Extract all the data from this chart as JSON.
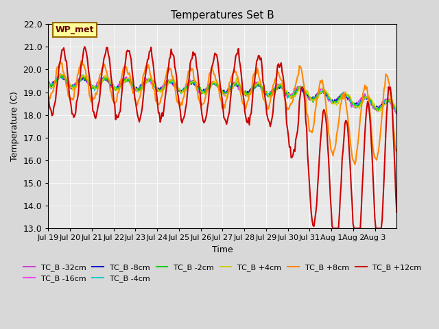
{
  "title": "Temperatures Set B",
  "ylabel": "Temperature (C)",
  "xlabel": "Time",
  "xlim_days": 16,
  "ylim": [
    13.0,
    22.0
  ],
  "yticks": [
    13.0,
    14.0,
    15.0,
    16.0,
    17.0,
    18.0,
    19.0,
    20.0,
    21.0,
    22.0
  ],
  "xtick_labels": [
    "Jul 19",
    "Jul 20",
    "Jul 21",
    "Jul 22",
    "Jul 23",
    "Jul 24",
    "Jul 25",
    "Jul 26",
    "Jul 27",
    "Jul 28",
    "Jul 29",
    "Jul 30",
    "Jul 31",
    "Aug 1",
    "Aug 2",
    "Aug 3"
  ],
  "bg_color": "#e8e8e8",
  "plot_bg": "#f0f0f0",
  "series": {
    "TC_B -32cm": {
      "color": "#cc44cc",
      "lw": 1.2
    },
    "TC_B -16cm": {
      "color": "#ff44ff",
      "lw": 1.2
    },
    "TC_B -8cm": {
      "color": "#0000cc",
      "lw": 1.2
    },
    "TC_B -4cm": {
      "color": "#00cccc",
      "lw": 1.2
    },
    "TC_B -2cm": {
      "color": "#00cc00",
      "lw": 1.2
    },
    "TC_B +4cm": {
      "color": "#cccc00",
      "lw": 1.2
    },
    "TC_B +8cm": {
      "color": "#ff8800",
      "lw": 1.5
    },
    "TC_B +12cm": {
      "color": "#cc0000",
      "lw": 1.5
    }
  },
  "wp_met_box_color": "#ffff99",
  "wp_met_border_color": "#996600",
  "wp_met_text_color": "#660000"
}
